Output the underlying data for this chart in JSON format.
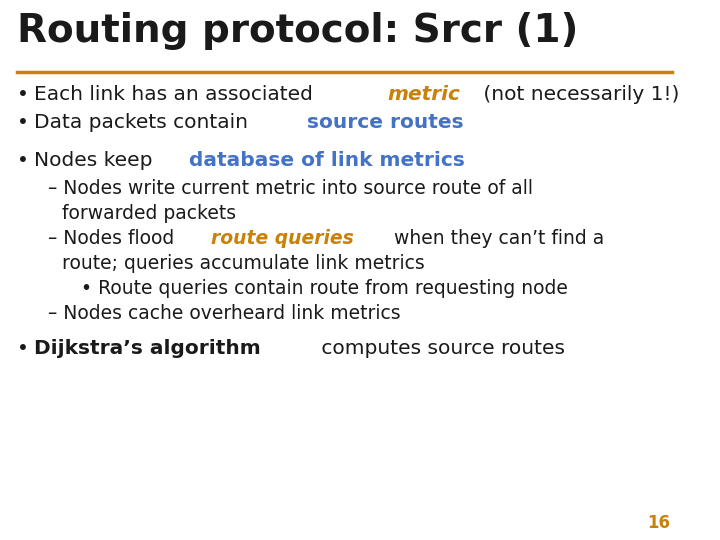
{
  "title": "Routing protocol: Srcr (1)",
  "title_color": "#1a1a1a",
  "title_fontsize": 28,
  "title_bold": true,
  "line_color": "#c8820a",
  "background_color": "#ffffff",
  "page_number": "16",
  "page_number_color": "#c8820a",
  "orange_color": "#c8820a",
  "blue_color": "#4472c4",
  "black_color": "#1a1a1a",
  "body_fontsize": 14.5,
  "sub_fontsize": 13.5,
  "subsub_fontsize": 13.0,
  "content": [
    {
      "type": "bullet",
      "level": 0,
      "parts": [
        {
          "text": "Each link has an associated ",
          "style": "normal",
          "color": "#1a1a1a"
        },
        {
          "text": "metric",
          "style": "bold_italic",
          "color": "#c8820a"
        },
        {
          "text": " (not necessarily 1!)",
          "style": "normal",
          "color": "#1a1a1a"
        }
      ]
    },
    {
      "type": "bullet",
      "level": 0,
      "parts": [
        {
          "text": "Data packets contain ",
          "style": "normal",
          "color": "#1a1a1a"
        },
        {
          "text": "source routes",
          "style": "bold",
          "color": "#4472c4"
        }
      ]
    },
    {
      "type": "spacer"
    },
    {
      "type": "bullet",
      "level": 0,
      "parts": [
        {
          "text": "Nodes keep ",
          "style": "normal",
          "color": "#1a1a1a"
        },
        {
          "text": "database of link metrics",
          "style": "bold",
          "color": "#4472c4"
        }
      ]
    },
    {
      "type": "bullet",
      "level": 1,
      "parts": [
        {
          "text": "– Nodes write current metric into source route of all",
          "style": "normal",
          "color": "#1a1a1a"
        }
      ]
    },
    {
      "type": "bullet",
      "level": 1,
      "indent2": true,
      "parts": [
        {
          "text": "forwarded packets",
          "style": "normal",
          "color": "#1a1a1a"
        }
      ]
    },
    {
      "type": "bullet",
      "level": 1,
      "parts": [
        {
          "text": "– Nodes flood ",
          "style": "normal",
          "color": "#1a1a1a"
        },
        {
          "text": "route queries",
          "style": "bold_italic",
          "color": "#c8820a"
        },
        {
          "text": " when they can’t find a",
          "style": "normal",
          "color": "#1a1a1a"
        }
      ]
    },
    {
      "type": "bullet",
      "level": 1,
      "indent2": true,
      "parts": [
        {
          "text": "route; queries accumulate link metrics",
          "style": "normal",
          "color": "#1a1a1a"
        }
      ]
    },
    {
      "type": "bullet",
      "level": 2,
      "parts": [
        {
          "text": "• Route queries contain route from requesting node",
          "style": "normal",
          "color": "#1a1a1a"
        }
      ]
    },
    {
      "type": "bullet",
      "level": 1,
      "parts": [
        {
          "text": "– Nodes cache overheard link metrics",
          "style": "normal",
          "color": "#1a1a1a"
        }
      ]
    },
    {
      "type": "spacer"
    },
    {
      "type": "bullet",
      "level": 0,
      "parts": [
        {
          "text": "Dijkstra’s algorithm",
          "style": "bold",
          "color": "#1a1a1a"
        },
        {
          "text": " computes source routes",
          "style": "normal",
          "color": "#1a1a1a"
        }
      ]
    }
  ]
}
